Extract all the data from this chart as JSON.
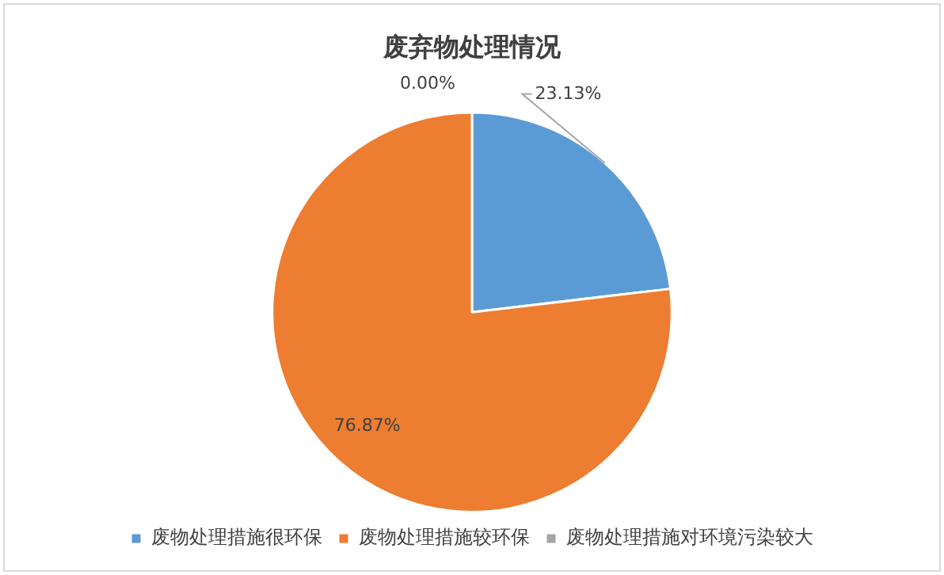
{
  "chart_data": {
    "type": "pie",
    "title": "废弃物处理情况",
    "categories": [
      "废物处理措施很环保",
      "废物处理措施较环保",
      "废物处理措施对环境污染较大"
    ],
    "values": [
      23.13,
      76.87,
      0.0
    ],
    "colors": [
      "#5b9bd5",
      "#ed7d31",
      "#a5a5a5"
    ],
    "value_labels": [
      "23.13%",
      "76.87%",
      "0.00%"
    ],
    "legend": "bottom"
  }
}
